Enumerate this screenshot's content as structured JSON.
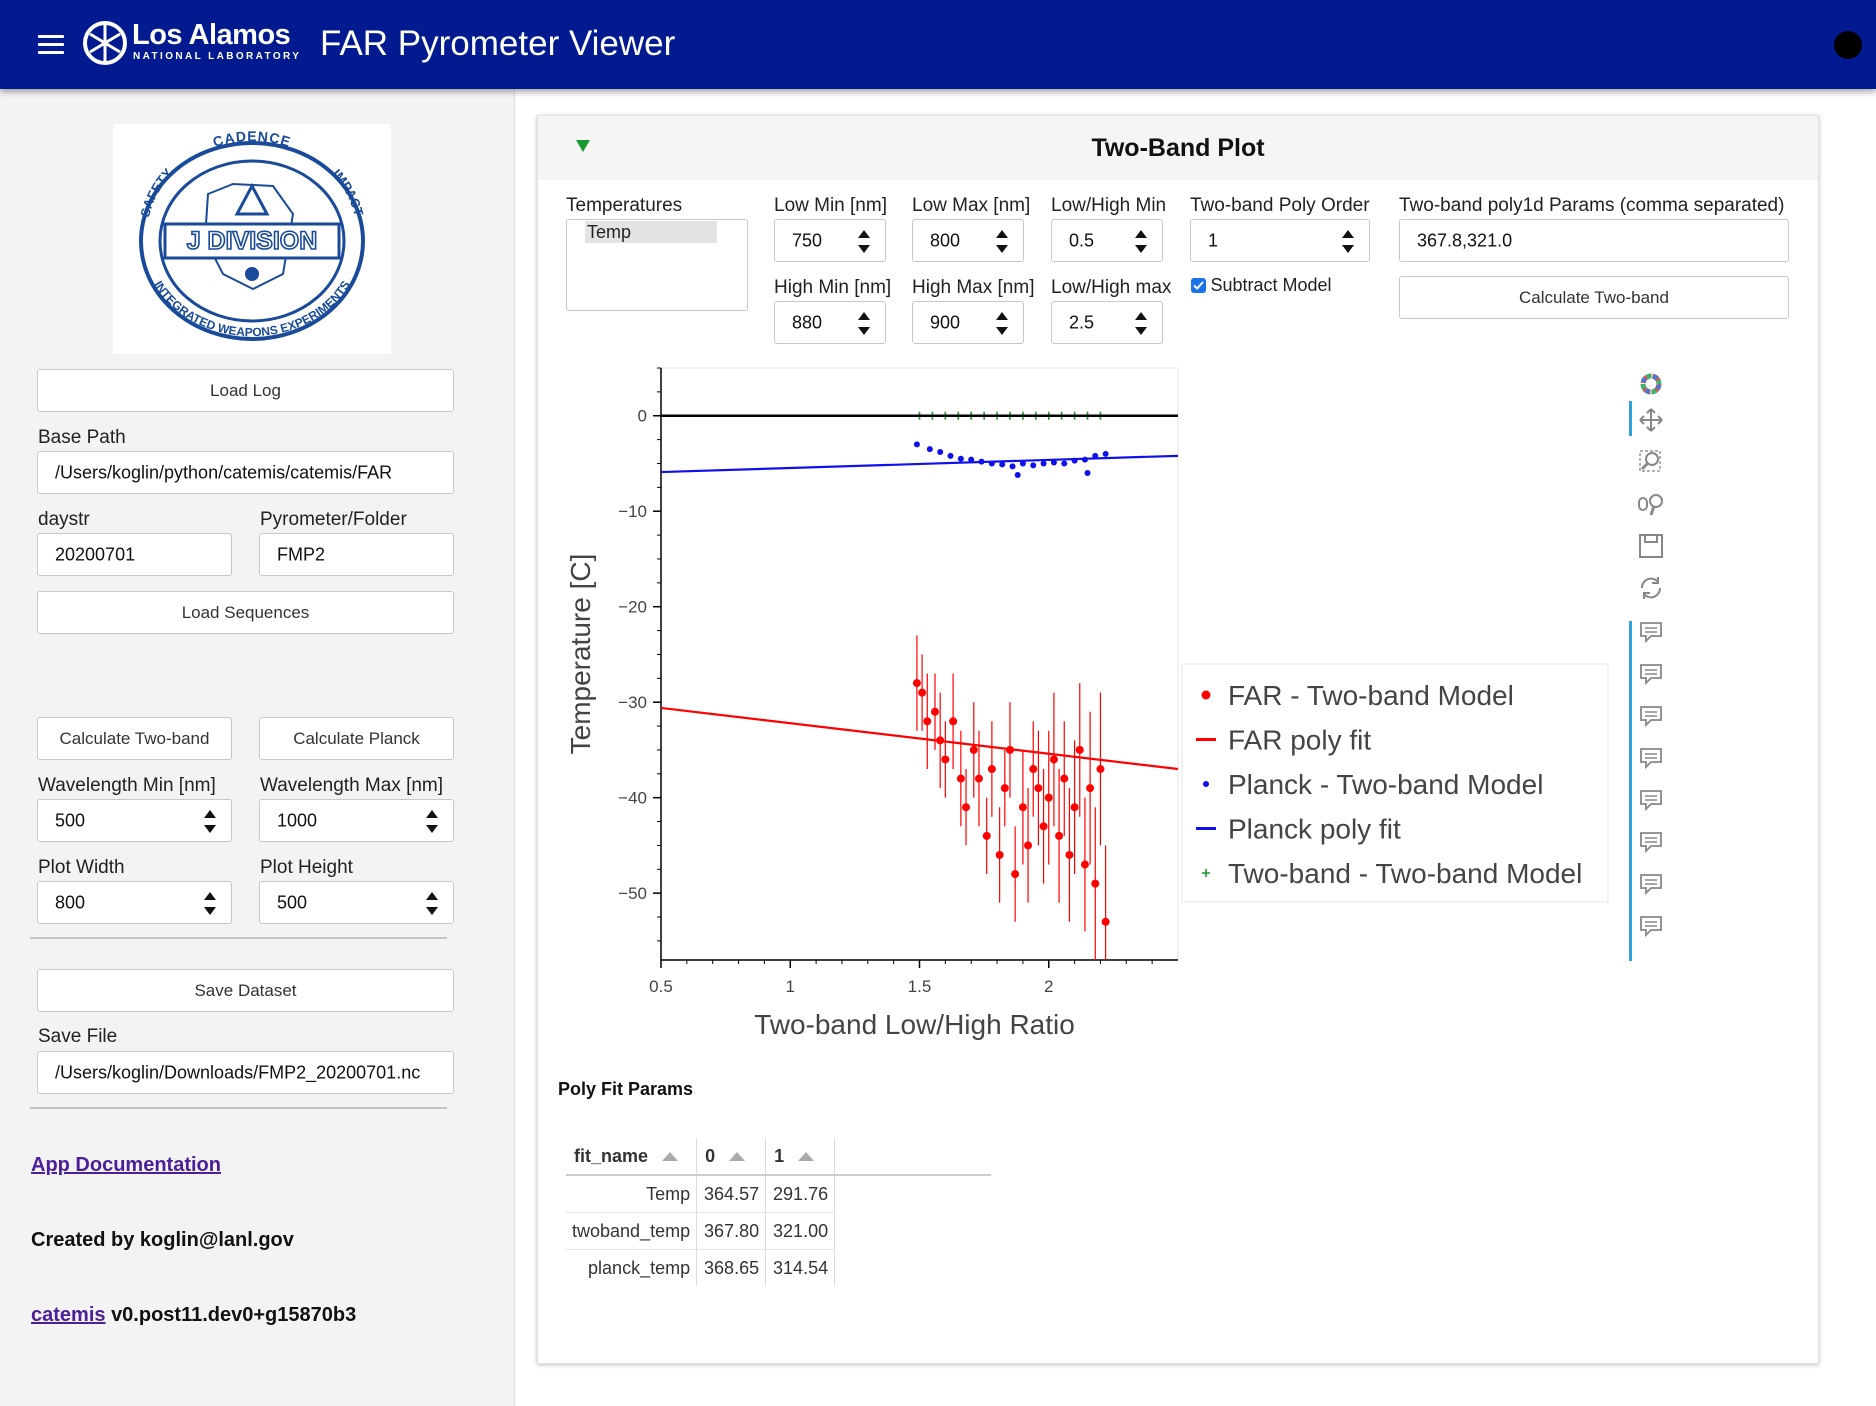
{
  "header": {
    "logo_title": "Los Alamos",
    "logo_subtitle": "NATIONAL LABORATORY",
    "app_title": "FAR Pyrometer Viewer"
  },
  "sidebar": {
    "division_logo": {
      "ring_top": "CADENCE",
      "ring_left": "SAFETY",
      "ring_right": "IMPACT",
      "center": "J DIVISION",
      "ring_bottom": "INTEGRATED WEAPONS EXPERIMENTS"
    },
    "load_log_label": "Load Log",
    "base_path_label": "Base Path",
    "base_path_value": "/Users/koglin/python/catemis/catemis/FAR",
    "daystr_label": "daystr",
    "daystr_value": "20200701",
    "pyrometer_label": "Pyrometer/Folder",
    "pyrometer_value": "FMP2",
    "load_sequences_label": "Load Sequences",
    "calc_twoband_label": "Calculate Two-band",
    "calc_planck_label": "Calculate Planck",
    "wl_min_label": "Wavelength Min [nm]",
    "wl_min_value": "500",
    "wl_max_label": "Wavelength Max [nm]",
    "wl_max_value": "1000",
    "plot_width_label": "Plot Width",
    "plot_width_value": "800",
    "plot_height_label": "Plot Height",
    "plot_height_value": "500",
    "save_dataset_label": "Save Dataset",
    "save_file_label": "Save File",
    "save_file_value": "/Users/koglin/Downloads/FMP2_20200701.nc",
    "doc_link": "App Documentation",
    "created_by": "Created by koglin@lanl.gov",
    "version_link": "catemis",
    "version_text": "v0.post11.dev0+g15870b3"
  },
  "panel": {
    "title": "Two-Band Plot",
    "temperatures_label": "Temperatures",
    "temperatures_selected": "Temp",
    "low_min_label": "Low Min [nm]",
    "low_min_value": "750",
    "low_max_label": "Low Max [nm]",
    "low_max_value": "800",
    "lowhigh_min_label": "Low/High Min",
    "lowhigh_min_value": "0.5",
    "poly_order_label": "Two-band Poly Order",
    "poly_order_value": "1",
    "poly_params_label": "Two-band poly1d Params (comma separated)",
    "poly_params_value": "367.8,321.0",
    "high_min_label": "High Min [nm]",
    "high_min_value": "880",
    "high_max_label": "High Max [nm]",
    "high_max_value": "900",
    "lowhigh_max_label": "Low/High max",
    "lowhigh_max_value": "2.5",
    "subtract_label": "Subtract Model",
    "subtract_checked": true,
    "calc_button_label": "Calculate Two-band"
  },
  "chart_data": {
    "type": "scatter",
    "xlabel": "Two-band Low/High Ratio",
    "ylabel": "Temperature [C]",
    "xlim": [
      0.5,
      2.5
    ],
    "ylim": [
      -57,
      5
    ],
    "xticks": [
      "0.5",
      "1",
      "1.5",
      "2"
    ],
    "yticks": [
      "0",
      "−10",
      "−20",
      "−30",
      "−40",
      "−50"
    ],
    "xtick_values": [
      0.5,
      1,
      1.5,
      2
    ],
    "ytick_values": [
      0,
      -10,
      -20,
      -30,
      -40,
      -50
    ],
    "legend_position": "right",
    "series": [
      {
        "name": "FAR - Two-band Model",
        "kind": "points",
        "color": "#ff0000",
        "x": [
          1.49,
          1.51,
          1.53,
          1.56,
          1.58,
          1.6,
          1.63,
          1.66,
          1.68,
          1.71,
          1.73,
          1.76,
          1.78,
          1.81,
          1.83,
          1.85,
          1.87,
          1.9,
          1.92,
          1.94,
          1.96,
          1.98,
          2.0,
          2.02,
          2.04,
          2.06,
          2.08,
          2.1,
          2.12,
          2.14,
          2.16,
          2.18,
          2.2,
          2.22
        ],
        "y": [
          -28,
          -29,
          -32,
          -31,
          -34,
          -36,
          -32,
          -38,
          -41,
          -35,
          -38,
          -44,
          -37,
          -46,
          -39,
          -35,
          -48,
          -41,
          -45,
          -37,
          -39,
          -43,
          -40,
          -36,
          -44,
          -38,
          -46,
          -41,
          -35,
          -47,
          -39,
          -49,
          -37,
          -53
        ],
        "err": [
          5,
          4,
          5,
          4,
          5,
          4,
          5,
          5,
          4,
          5,
          5,
          4,
          5,
          5,
          4,
          5,
          5,
          6,
          6,
          5,
          6,
          6,
          7,
          7,
          7,
          6,
          7,
          7,
          7,
          7,
          8,
          8,
          8,
          8
        ]
      },
      {
        "name": "FAR poly fit",
        "kind": "line",
        "color": "#ff0000",
        "x": [
          0.5,
          2.5
        ],
        "y": [
          -30.6,
          -37.0
        ]
      },
      {
        "name": "Planck - Two-band Model",
        "kind": "points",
        "color": "#1010ee",
        "x": [
          1.49,
          1.54,
          1.58,
          1.62,
          1.66,
          1.7,
          1.74,
          1.78,
          1.82,
          1.86,
          1.9,
          1.94,
          1.98,
          2.02,
          2.06,
          2.1,
          2.14,
          2.18,
          2.22,
          1.88,
          2.15
        ],
        "y": [
          -3.0,
          -3.5,
          -3.8,
          -4.2,
          -4.5,
          -4.6,
          -4.8,
          -5.0,
          -5.1,
          -5.3,
          -5.0,
          -5.2,
          -5.0,
          -4.9,
          -5.0,
          -4.7,
          -4.6,
          -4.2,
          -4.0,
          -6.2,
          -6.0
        ]
      },
      {
        "name": "Planck poly fit",
        "kind": "line",
        "color": "#1010ee",
        "x": [
          0.5,
          2.5
        ],
        "y": [
          -5.9,
          -4.2
        ]
      },
      {
        "name": "Two-band - Two-band Model",
        "kind": "points",
        "color": "#1a9a2e",
        "x": [
          1.5,
          1.55,
          1.6,
          1.65,
          1.7,
          1.75,
          1.8,
          1.85,
          1.9,
          1.95,
          2.0,
          2.05,
          2.1,
          2.15,
          2.2
        ],
        "y": [
          0,
          0,
          0,
          0,
          0,
          0,
          0,
          0,
          0,
          0,
          0,
          0,
          0,
          0,
          0
        ]
      },
      {
        "name": "",
        "kind": "hline",
        "color": "#000000",
        "y": 0
      }
    ]
  },
  "poly_table": {
    "title": "Poly Fit Params",
    "headers": [
      "fit_name",
      "0",
      "1"
    ],
    "rows": [
      [
        "Temp",
        "364.57",
        "291.76"
      ],
      [
        "twoband_temp",
        "367.80",
        "321.00"
      ],
      [
        "planck_temp",
        "368.65",
        "314.54"
      ]
    ]
  }
}
